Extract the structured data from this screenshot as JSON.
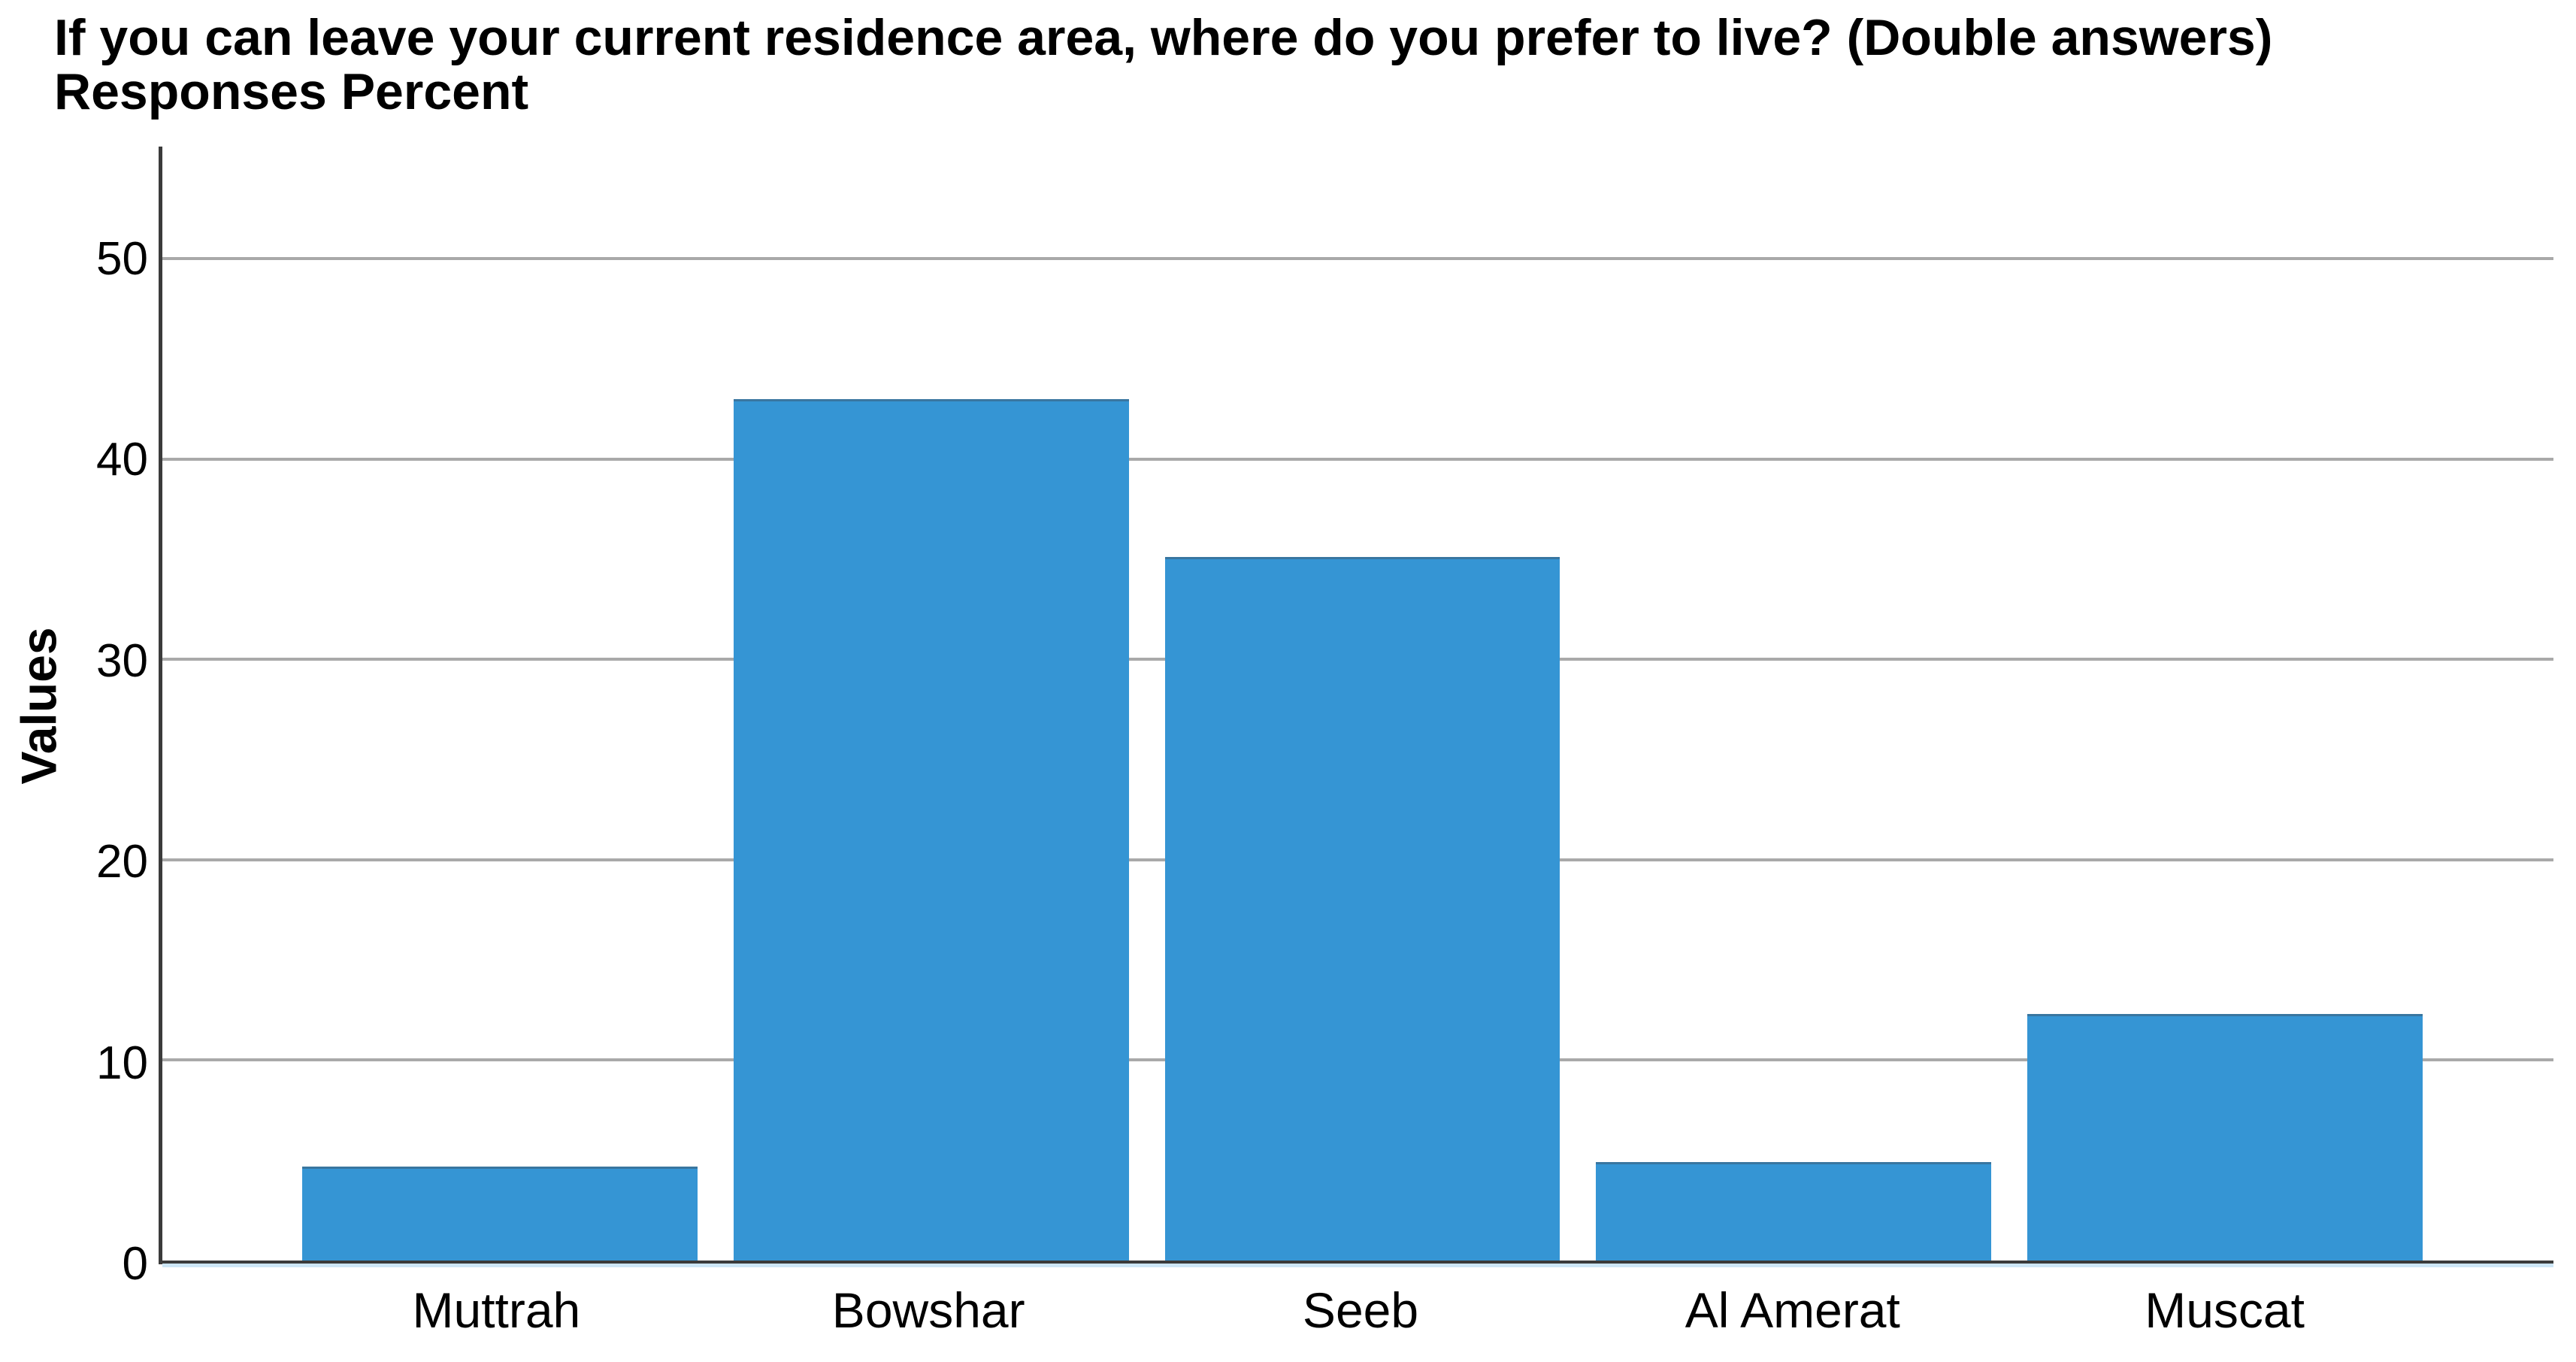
{
  "page": {
    "background": "#ffffff"
  },
  "chart_data": {
    "type": "bar",
    "title": "If you can leave your current residence area, where do you prefer to live? (Double answers)",
    "subtitle": "Responses Percent",
    "ylabel": "Values",
    "categories": [
      "Muttrah",
      "Bowshar",
      "Seeb",
      "Al Amerat",
      "Muscat"
    ],
    "values": [
      4.7,
      43.0,
      35.1,
      4.9,
      12.3
    ],
    "yticks": [
      0,
      10,
      20,
      30,
      40,
      50
    ],
    "ylim": [
      0,
      55.6
    ],
    "grid": true,
    "legend_position": "none",
    "bar_color": "#3595d4",
    "gridline_color": "#a9a9a9",
    "axis_color": "#3b3b3b",
    "text_color": "#000000",
    "under_axis_strip_color": "#cde6f6"
  }
}
